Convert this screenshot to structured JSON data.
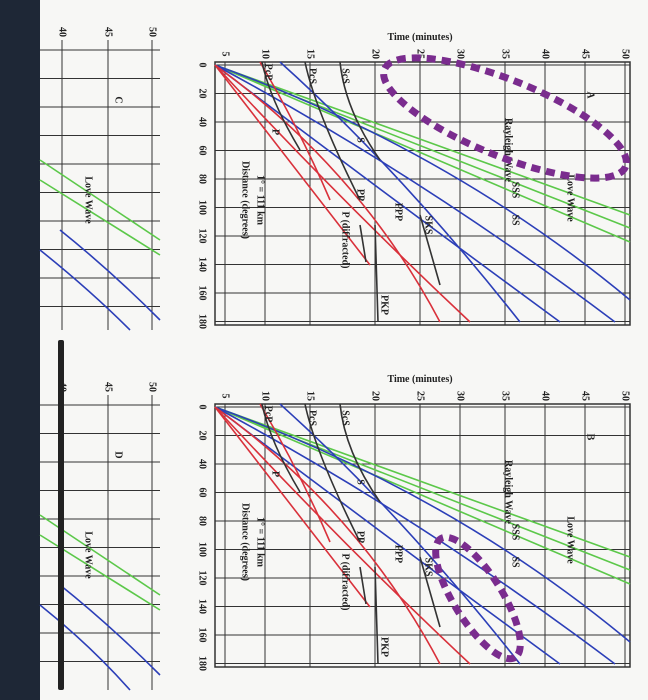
{
  "panels": [
    {
      "letter": "A",
      "time_label": "Time (minutes)",
      "time_ticks": [
        "5",
        "10",
        "15",
        "20",
        "25",
        "30",
        "35",
        "40",
        "45",
        "50"
      ],
      "distance_ticks": [
        "0",
        "20",
        "40",
        "60",
        "80",
        "100",
        "120",
        "140",
        "160",
        "180"
      ],
      "distance_label": "Distance (degrees)",
      "distance_scale": "1° = 111 km",
      "waves": [
        "Love Wave",
        "Rayleigh Wave",
        "SSS",
        "SS",
        "SKS",
        "PPP",
        "PP",
        "P (diffracted)",
        "PKP",
        "S",
        "P",
        "ScS",
        "PcS",
        "PcP"
      ]
    },
    {
      "letter": "B",
      "time_label": "Time (minutes)",
      "time_ticks": [
        "5",
        "10",
        "15",
        "20",
        "25",
        "30",
        "35",
        "40",
        "45",
        "50"
      ],
      "distance_ticks": [
        "0",
        "20",
        "40",
        "60",
        "80",
        "100",
        "120",
        "140",
        "160",
        "180"
      ],
      "distance_label": "Distance (degrees)",
      "distance_scale": "1° = 111 km",
      "waves": [
        "Love Wave",
        "Rayleigh Wave",
        "SSS",
        "SS",
        "SKS",
        "PPP",
        "PP",
        "P (diffracted)",
        "PKP",
        "S",
        "P",
        "ScS",
        "PcS",
        "PcP"
      ]
    }
  ],
  "side_panels": [
    {
      "letter": "C",
      "time_ticks": [
        "40",
        "45",
        "50"
      ],
      "waves": [
        "Love Wave"
      ]
    },
    {
      "letter": "D",
      "time_ticks": [
        "40",
        "45",
        "50"
      ],
      "waves": [
        "Love Wave"
      ]
    }
  ]
}
